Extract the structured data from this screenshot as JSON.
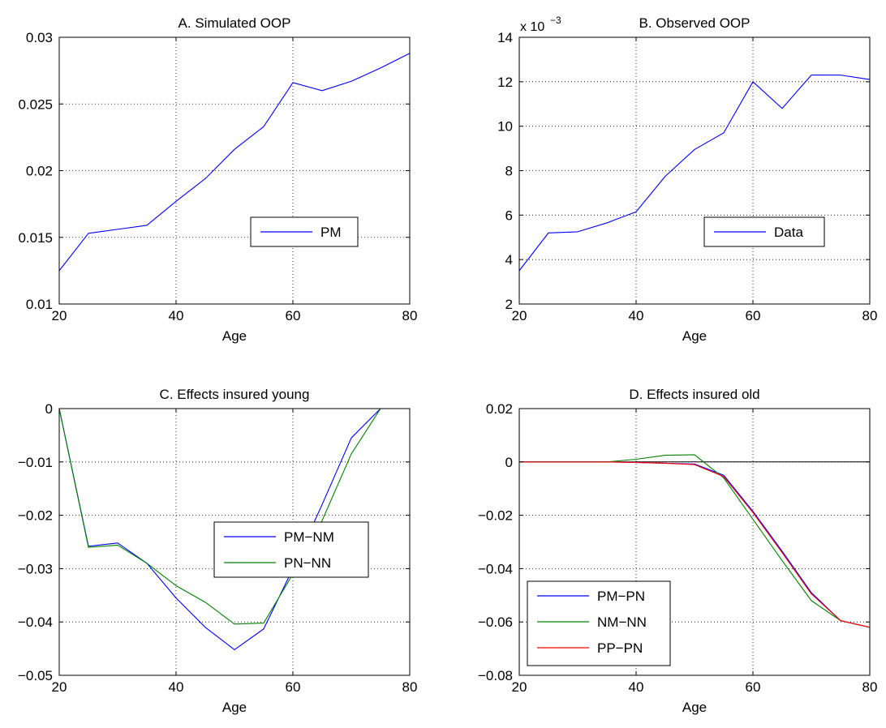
{
  "chart_data": [
    {
      "type": "line",
      "title": "A. Simulated OOP",
      "xlabel": "Age",
      "ylabel": "",
      "xlim": [
        20,
        80
      ],
      "ylim": [
        0.01,
        0.03
      ],
      "xticks": [
        20,
        40,
        60,
        80
      ],
      "xtick_labels": [
        "20",
        "40",
        "60",
        "80"
      ],
      "yticks": [
        0.01,
        0.015,
        0.02,
        0.025,
        0.03
      ],
      "ytick_labels": [
        "0.01",
        "0.015",
        "0.02",
        "0.025",
        "0.03"
      ],
      "exponent_label": "",
      "grid": true,
      "legend_position": "center-right",
      "series": [
        {
          "name": "PM",
          "color": "#0000ff",
          "x": [
            20,
            25,
            30,
            35,
            40,
            45,
            50,
            55,
            60,
            65,
            70,
            75,
            80
          ],
          "y": [
            0.0125,
            0.0153,
            0.0156,
            0.0159,
            0.0177,
            0.0194,
            0.0216,
            0.0233,
            0.0266,
            0.026,
            0.0267,
            0.0277,
            0.0288
          ]
        }
      ]
    },
    {
      "type": "line",
      "title": "B. Observed OOP",
      "xlabel": "Age",
      "ylabel": "",
      "xlim": [
        20,
        80
      ],
      "ylim": [
        2,
        14
      ],
      "xticks": [
        20,
        40,
        60,
        80
      ],
      "xtick_labels": [
        "20",
        "40",
        "60",
        "80"
      ],
      "yticks": [
        2,
        4,
        6,
        8,
        10,
        12,
        14
      ],
      "ytick_labels": [
        "2",
        "4",
        "6",
        "8",
        "10",
        "12",
        "14"
      ],
      "exponent_label": "x 10",
      "exponent_power": "−3",
      "grid": true,
      "legend_position": "center-right",
      "series": [
        {
          "name": "Data",
          "color": "#0000ff",
          "x": [
            20,
            25,
            30,
            35,
            40,
            45,
            50,
            55,
            60,
            65,
            70,
            75,
            80
          ],
          "y": [
            3.5,
            5.2,
            5.25,
            5.65,
            6.15,
            7.75,
            8.95,
            9.7,
            12.0,
            10.8,
            12.3,
            12.3,
            12.1
          ]
        }
      ]
    },
    {
      "type": "line",
      "title": "C. Effects insured young",
      "xlabel": "Age",
      "ylabel": "",
      "xlim": [
        20,
        80
      ],
      "ylim": [
        -0.05,
        0
      ],
      "xticks": [
        20,
        40,
        60,
        80
      ],
      "xtick_labels": [
        "20",
        "40",
        "60",
        "80"
      ],
      "yticks": [
        -0.05,
        -0.04,
        -0.03,
        -0.02,
        -0.01,
        0
      ],
      "ytick_labels": [
        "−0.05",
        "−0.04",
        "−0.03",
        "−0.02",
        "−0.01",
        "0"
      ],
      "exponent_label": "",
      "grid": true,
      "legend_position": "center-right",
      "series": [
        {
          "name": "PM−NM",
          "color": "#0000ff",
          "x": [
            20,
            25,
            30,
            35,
            40,
            45,
            50,
            55,
            60,
            65,
            70,
            75
          ],
          "y": [
            0,
            -0.0258,
            -0.0252,
            -0.029,
            -0.0355,
            -0.041,
            -0.0452,
            -0.0413,
            -0.03,
            -0.018,
            -0.0055,
            0
          ]
        },
        {
          "name": "PN−NN",
          "color": "#008000",
          "x": [
            20,
            25,
            30,
            35,
            40,
            45,
            50,
            55,
            60,
            65,
            70,
            75
          ],
          "y": [
            0,
            -0.026,
            -0.0256,
            -0.029,
            -0.0332,
            -0.0363,
            -0.0404,
            -0.0402,
            -0.031,
            -0.021,
            -0.0085,
            0
          ]
        }
      ]
    },
    {
      "type": "line",
      "title": "D. Effects insured old",
      "xlabel": "Age",
      "ylabel": "",
      "xlim": [
        20,
        80
      ],
      "ylim": [
        -0.08,
        0.02
      ],
      "xticks": [
        20,
        40,
        60,
        80
      ],
      "xtick_labels": [
        "20",
        "40",
        "60",
        "80"
      ],
      "yticks": [
        -0.08,
        -0.06,
        -0.04,
        -0.02,
        0,
        0.02
      ],
      "ytick_labels": [
        "−0.08",
        "−0.06",
        "−0.04",
        "−0.02",
        "0",
        "0.02"
      ],
      "exponent_label": "",
      "grid": true,
      "zero_line": true,
      "legend_position": "bottom-left",
      "series": [
        {
          "name": "PM−PN",
          "color": "#0000ff",
          "x": [
            20,
            25,
            30,
            35,
            40,
            45,
            50,
            55,
            60,
            65,
            70,
            75,
            80
          ],
          "y": [
            0,
            0,
            0,
            0,
            -0.0002,
            -0.0005,
            -0.0008,
            -0.005,
            -0.0185,
            -0.0335,
            -0.049,
            -0.0595,
            -0.062
          ]
        },
        {
          "name": "NM−NN",
          "color": "#008000",
          "x": [
            20,
            25,
            30,
            35,
            40,
            45,
            50,
            55,
            60,
            65,
            70,
            75,
            80
          ],
          "y": [
            0,
            0,
            0,
            0,
            0.001,
            0.0025,
            0.0027,
            -0.006,
            -0.0215,
            -0.037,
            -0.052,
            -0.0595,
            -0.062
          ]
        },
        {
          "name": "PP−PN",
          "color": "#ff0000",
          "x": [
            20,
            25,
            30,
            35,
            40,
            45,
            50,
            55,
            60,
            65,
            70,
            75,
            80
          ],
          "y": [
            0,
            0,
            0,
            0,
            -0.0002,
            -0.0005,
            -0.001,
            -0.0055,
            -0.019,
            -0.034,
            -0.0495,
            -0.0595,
            -0.062
          ]
        }
      ]
    }
  ]
}
